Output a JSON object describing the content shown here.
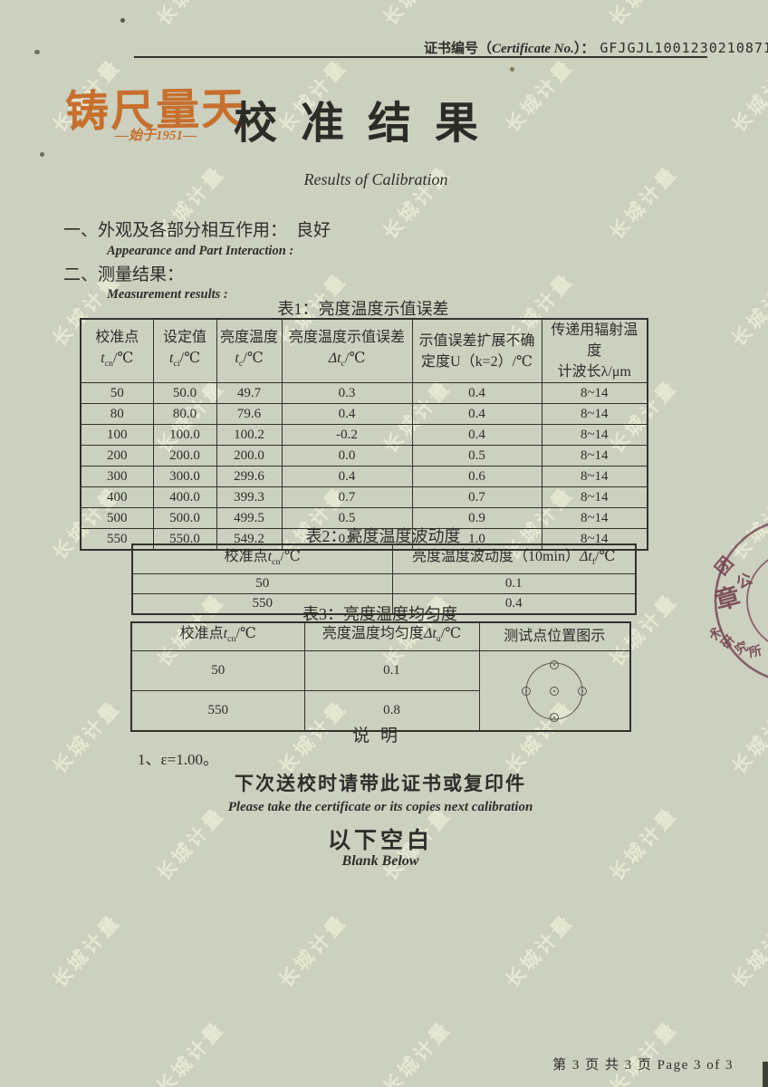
{
  "header": {
    "cert_label_zh": "证书编号（",
    "cert_label_en": "Certificate No.",
    "cert_label_close": "）：",
    "cert_no": "GFJGJL1001230210871"
  },
  "brand": {
    "logo_text": "铸尺量天",
    "since_text": "—始于1951—"
  },
  "title": {
    "zh": "校准结果",
    "en": "Results of Calibration"
  },
  "sections": {
    "s1_label": "一、外观及各部分相互作用：",
    "s1_value": "良好",
    "s1_en": "Appearance and Part Interaction :",
    "s2_label": "二、测量结果：",
    "s2_en": "Measurement results :"
  },
  "table1": {
    "title": "表1：亮度温度示值误差",
    "cols": [
      {
        "top": "校准点",
        "sym": "t",
        "sub": "cn",
        "unit": "/℃"
      },
      {
        "top": "设定值",
        "sym": "t",
        "sub": "ci",
        "unit": "/℃"
      },
      {
        "top": "亮度温度",
        "sym": "t",
        "sub": "c",
        "unit": "/℃"
      },
      {
        "top": "亮度温度示值误差",
        "sym": "Δt",
        "sub": "c",
        "unit": "/℃"
      },
      {
        "top": "示值误差扩展不确",
        "line2": "定度U（k=2）/℃"
      },
      {
        "top": "传递用辐射温度",
        "line2": "计波长λ/μm"
      }
    ],
    "rows": [
      [
        "50",
        "50.0",
        "49.7",
        "0.3",
        "0.4",
        "8~14"
      ],
      [
        "80",
        "80.0",
        "79.6",
        "0.4",
        "0.4",
        "8~14"
      ],
      [
        "100",
        "100.0",
        "100.2",
        "-0.2",
        "0.4",
        "8~14"
      ],
      [
        "200",
        "200.0",
        "200.0",
        "0.0",
        "0.5",
        "8~14"
      ],
      [
        "300",
        "300.0",
        "299.6",
        "0.4",
        "0.6",
        "8~14"
      ],
      [
        "400",
        "400.0",
        "399.3",
        "0.7",
        "0.7",
        "8~14"
      ],
      [
        "500",
        "500.0",
        "499.5",
        "0.5",
        "0.9",
        "8~14"
      ],
      [
        "550",
        "550.0",
        "549.2",
        "0.8",
        "1.0",
        "8~14"
      ]
    ]
  },
  "table2": {
    "title": "表2：亮度温度波动度",
    "cols": [
      {
        "pre": "校准点",
        "sym": "t",
        "sub": "cn",
        "unit": "/℃"
      },
      {
        "pre": "亮度温度波动度（10min）",
        "sym": "Δt",
        "sub": "f",
        "unit": "/℃"
      }
    ],
    "rows": [
      [
        "50",
        "0.1"
      ],
      [
        "550",
        "0.4"
      ]
    ]
  },
  "table3": {
    "title": "表3：亮度温度均匀度",
    "cols": [
      {
        "pre": "校准点",
        "sym": "t",
        "sub": "cn",
        "unit": "/℃"
      },
      {
        "pre": "亮度温度均匀度",
        "sym": "Δt",
        "sub": "u",
        "unit": "/℃"
      },
      {
        "pre": "测试点位置图示"
      }
    ],
    "rows": [
      [
        "50",
        "0.1"
      ],
      [
        "550",
        "0.8"
      ]
    ]
  },
  "notes": {
    "heading": "说明",
    "note1": "1、ε=1.00。",
    "bring_zh": "下次送校时请带此证书或复印件",
    "bring_en": "Please take the certificate or its copies next calibration",
    "blank_zh": "以下空白",
    "blank_en": "Blank Below"
  },
  "footer": {
    "page_text": "第 3 页 共 3 页  Page 3 of 3"
  },
  "stamp": {
    "ring_top": [
      "团",
      "公"
    ],
    "center": "章",
    "ring_bottom": [
      "术",
      "研",
      "究",
      "所"
    ],
    "color": "#74404e"
  },
  "watermark": {
    "text": "长城计量"
  },
  "colors": {
    "paper": "#cbd0bf",
    "ink": "#2e2e29",
    "accent_orange": "#c86f2d",
    "stamp_red": "#74404e"
  }
}
